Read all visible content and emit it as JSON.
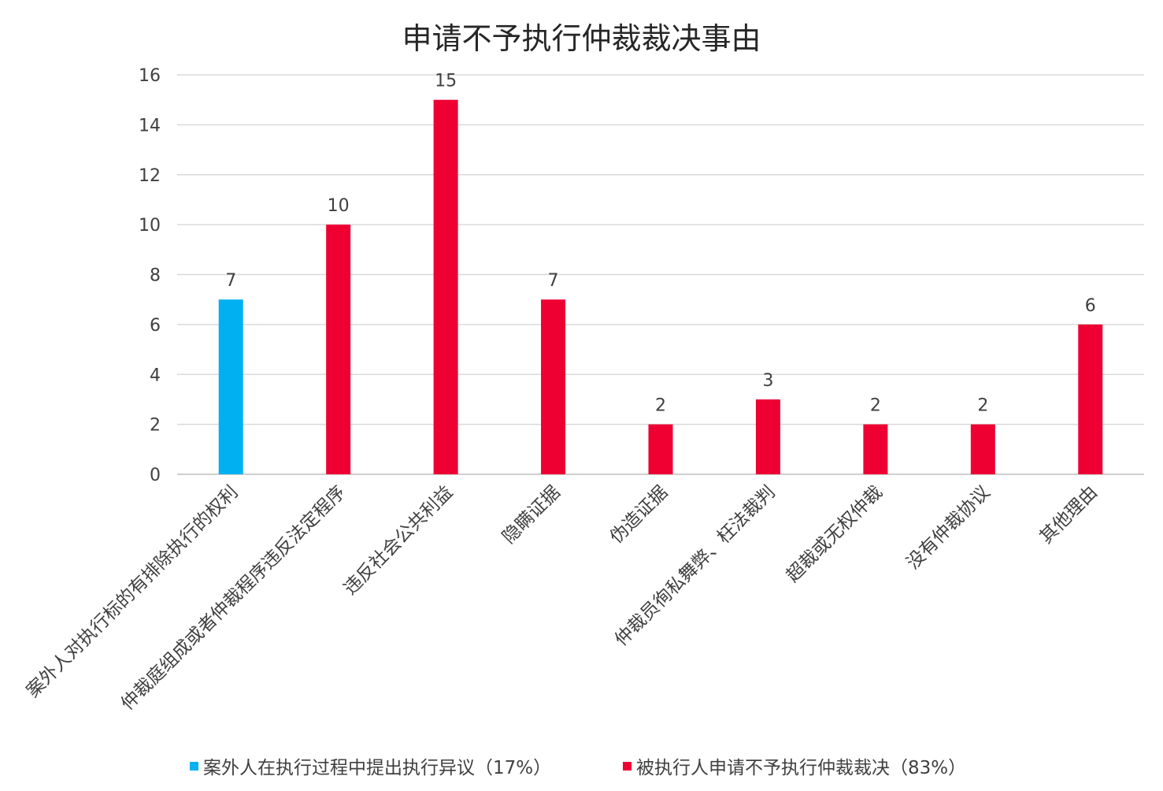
{
  "chart_data": {
    "type": "bar",
    "title": "申请不予执行仲裁裁决事由",
    "xlabel": "",
    "ylabel": "",
    "ylim": [
      0,
      16
    ],
    "yticks": [
      0,
      2,
      4,
      6,
      8,
      10,
      12,
      14,
      16
    ],
    "grid": true,
    "legend_position": "bottom",
    "categories": [
      "案外人对执行标的有排除执行的权利",
      "仲裁庭组成或者仲裁程序违反法定程序",
      "违反社会公共利益",
      "隐瞒证据",
      "伪造证据",
      "仲裁员徇私舞弊、枉法裁判",
      "超裁或无权仲裁",
      "没有仲裁协议",
      "其他理由"
    ],
    "values": [
      7,
      10,
      15,
      7,
      2,
      3,
      2,
      2,
      6
    ],
    "bar_series_index": [
      0,
      1,
      1,
      1,
      1,
      1,
      1,
      1,
      1
    ],
    "series": [
      {
        "name": "案外人在执行过程中提出执行异议（17%）",
        "color": "#00b0f0"
      },
      {
        "name": "被执行人申请不予执行仲裁裁决（83%）",
        "color": "#ee0033"
      }
    ]
  }
}
